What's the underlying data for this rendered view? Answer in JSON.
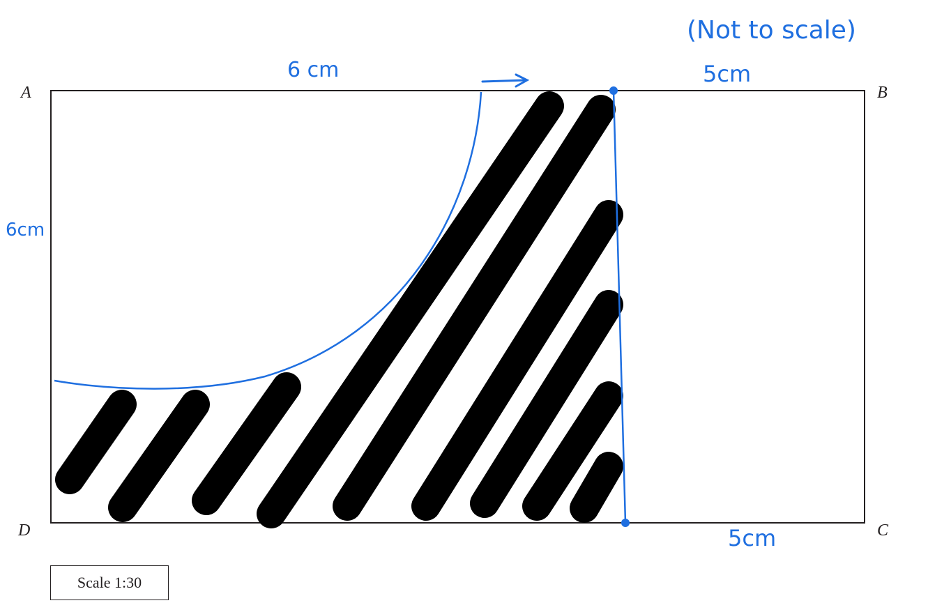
{
  "vertices": {
    "A": "A",
    "B": "B",
    "C": "C",
    "D": "D"
  },
  "annotations": {
    "not_to_scale": "(Not to scale)",
    "top_left_length": "6 cm",
    "top_right_length": "5cm",
    "left_length": "6cm",
    "bottom_right_length": "5cm"
  },
  "scale_label": "Scale 1:30",
  "colors": {
    "outline": "#231f20",
    "hatching": "#000000",
    "annotation": "#1f6fe0"
  }
}
